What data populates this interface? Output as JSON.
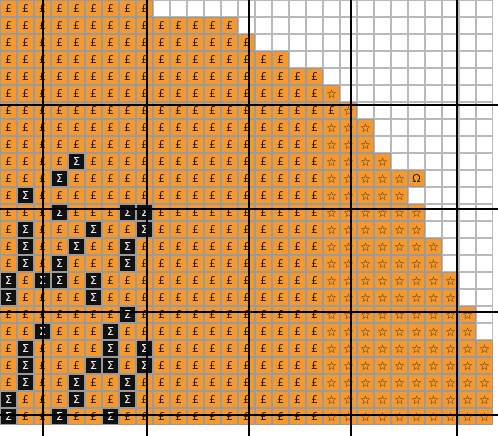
{
  "colors": {
    "orange": "#f5992e",
    "black": "#111111",
    "grid": "#9a9a9a",
    "empty": "#ffffff"
  },
  "symbols": {
    "pound": "£",
    "sigma": "Σ",
    "star": "☆",
    "omega": "Ω",
    "empty": ""
  },
  "legend": {
    "P": "pound",
    "S": "sigma",
    "T": "star",
    "O": "omega",
    ".": "empty"
  },
  "board": {
    "cols": 29,
    "rows": [
      "PPPPPPPPP....................",
      "PPPPPPPPPPPPPP...............",
      "PPPPPPPPPPPPPPP..............",
      "PPPPPPPPPPPPPPPPP............",
      "PPPPPPPPPPPPPPPPPPP..........",
      "PPPPPPPPPPPPPPPPPPPT.........",
      "PPPPPPPPPPPPPPPPPPPPT........",
      "PPPPPPPPPPPPPPPPPPPTTT.......",
      "PPPPPPPPPPPPPPPPPPPTTT.......",
      "PPPPSPPPPPPPPPPPPPPTTTT......",
      "PPPSPPPPPPPPPPPPPPPTTTTTO....",
      "PSPPPPPPPPPPPPPPPPPTTTTT.....",
      "PPPSPPPSSPPPPPPPPPPTTTTTT....",
      "PSPPPSPPSPPPPPPPPPPTTTTTT....",
      "PSPPSPPSPPPPPPPPPPPTTTTTTT...",
      "PSPSPPPSPPPPPPPPPPPTTTTTTT...",
      "SPSSPSPPPPPPPPPPPPPTTTTTTTT..",
      "SPPPPSPPPPPPPPPPPPPTTTTTTTT..",
      "PPPPPPPSPPPPPPPPPPPTTTTTTTTT.",
      "PPSPPPSPPPPPPPPPPPPTTTTTTTTT.",
      "PSPPPPSPSPPPPPPPPPPTTTTTTTTTT",
      "PSPPPSSPSPPPPPPPPPPTTTTTTTTTT",
      "PSPPSPPSPPPPPPPPPPPTTTTTTTTTT",
      "SPPPSPPSPPPPPPPPPPPTTTTTTTTTT",
      "SPPSPPSPPPPPPPPPPPPTTTTTTTTTT"
    ]
  }
}
